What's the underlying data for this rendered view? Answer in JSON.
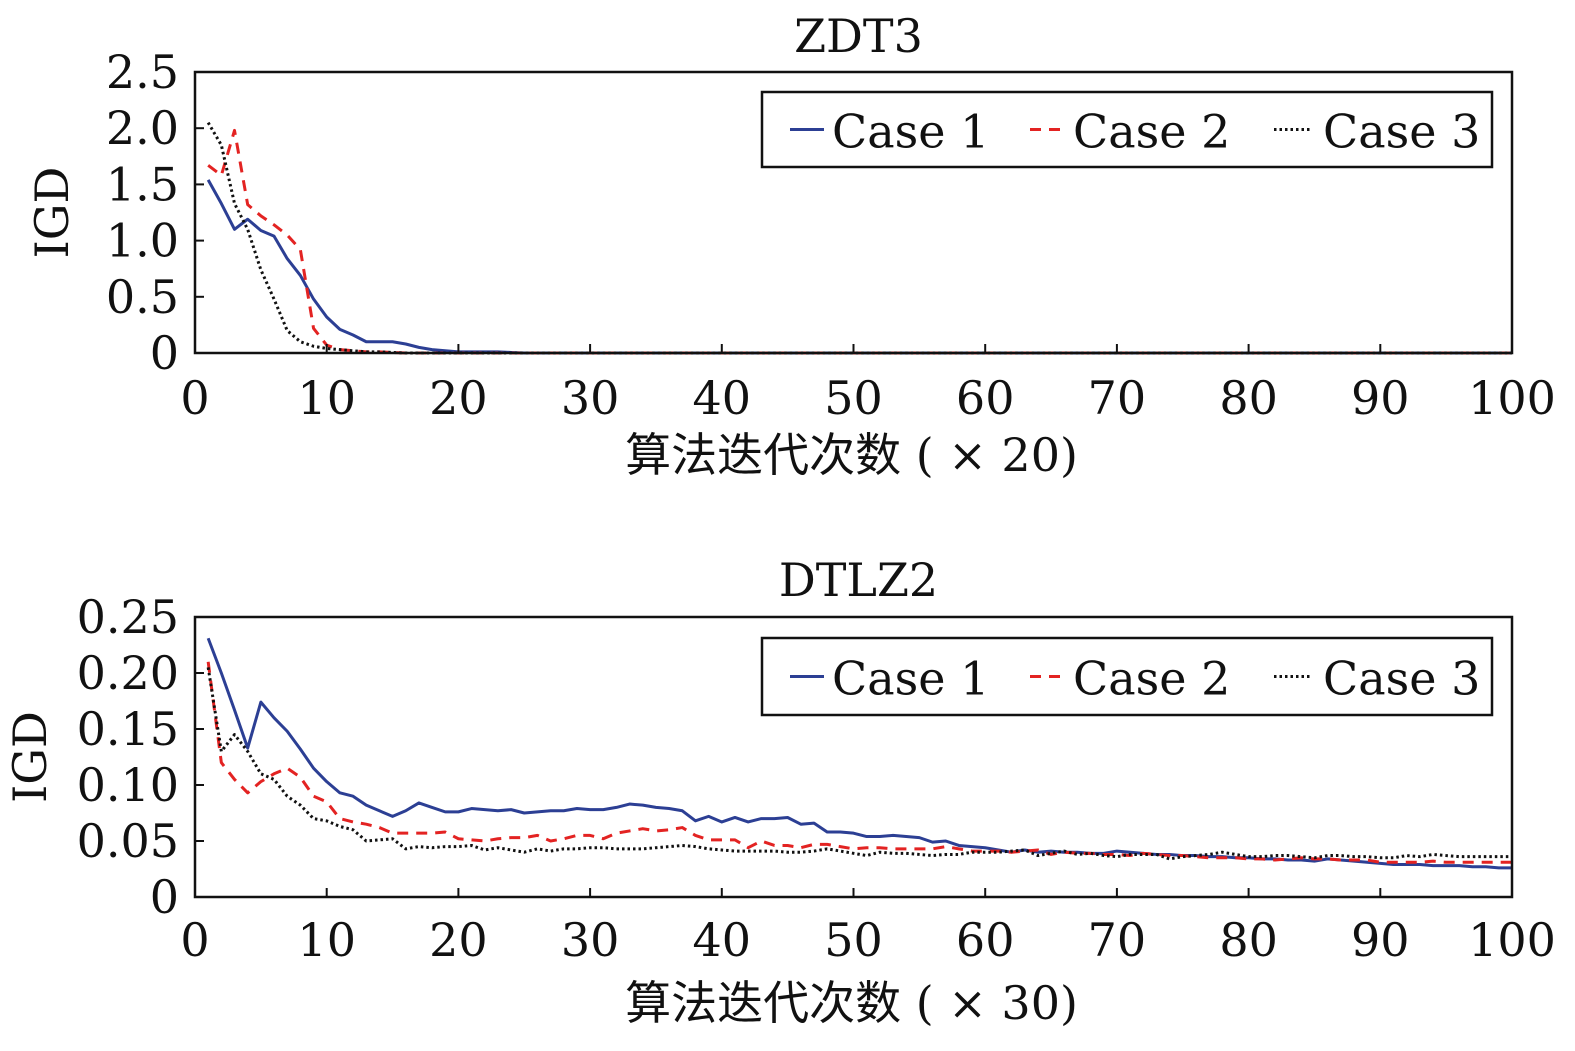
{
  "chart_data": [
    {
      "type": "line",
      "title": "ZDT3",
      "xlabel": "算法迭代次数 ( × 20)",
      "ylabel": "IGD",
      "xlim": [
        0,
        100
      ],
      "ylim": [
        0,
        2.5
      ],
      "xticks": [
        0,
        10,
        20,
        30,
        40,
        50,
        60,
        70,
        80,
        90,
        100
      ],
      "xtick_labels": [
        "0",
        "10",
        "20",
        "30",
        "40",
        "50",
        "60",
        "70",
        "80",
        "90",
        "100"
      ],
      "yticks": [
        0,
        0.5,
        1.0,
        1.5,
        2.0,
        2.5
      ],
      "ytick_labels": [
        "0",
        "0.5",
        "1.0",
        "1.5",
        "2.0",
        "2.5"
      ],
      "grid": false,
      "legend_position": "top-right",
      "x": [
        1,
        2,
        3,
        4,
        5,
        6,
        7,
        8,
        9,
        10,
        11,
        12,
        13,
        14,
        15,
        16,
        17,
        18,
        19,
        20,
        21,
        22,
        23,
        24,
        25,
        26,
        27,
        28,
        29,
        30,
        31,
        32,
        33,
        34,
        35,
        36,
        37,
        38,
        39,
        40,
        41,
        42,
        43,
        44,
        45,
        46,
        47,
        48,
        49,
        50,
        51,
        52,
        53,
        54,
        55,
        56,
        57,
        58,
        59,
        60,
        61,
        62,
        63,
        64,
        65,
        66,
        67,
        68,
        69,
        70,
        71,
        72,
        73,
        74,
        75,
        76,
        77,
        78,
        79,
        80,
        81,
        82,
        83,
        84,
        85,
        86,
        87,
        88,
        89,
        90,
        91,
        92,
        93,
        94,
        95,
        96,
        97,
        98,
        99,
        100
      ],
      "series": [
        {
          "name": "Case 1",
          "color": "#2c3f94",
          "style": "solid",
          "values": [
            1.54,
            1.33,
            1.1,
            1.19,
            1.09,
            1.04,
            0.84,
            0.69,
            0.48,
            0.32,
            0.21,
            0.16,
            0.1,
            0.1,
            0.1,
            0.08,
            0.05,
            0.03,
            0.02,
            0.01,
            0.01,
            0.01,
            0.01,
            0.005,
            0,
            0,
            0,
            0,
            0,
            0,
            0,
            0,
            0,
            0,
            0,
            0,
            0,
            0,
            0,
            0,
            0,
            0,
            0,
            0,
            0,
            0,
            0,
            0,
            0,
            0,
            0,
            0,
            0,
            0,
            0,
            0,
            0,
            0,
            0,
            0,
            0,
            0,
            0,
            0,
            0,
            0,
            0,
            0,
            0,
            0,
            0,
            0,
            0,
            0,
            0,
            0,
            0,
            0,
            0,
            0,
            0,
            0,
            0,
            0,
            0,
            0,
            0,
            0,
            0,
            0,
            0,
            0,
            0,
            0,
            0,
            0,
            0,
            0,
            0,
            0
          ]
        },
        {
          "name": "Case 2",
          "color": "#e32322",
          "style": "dashed",
          "values": [
            1.67,
            1.58,
            1.98,
            1.32,
            1.22,
            1.14,
            1.05,
            0.92,
            0.22,
            0.07,
            0.03,
            0.02,
            0.01,
            0.01,
            0.005,
            0,
            0,
            0,
            0,
            0,
            0,
            0,
            0,
            0,
            0,
            0,
            0,
            0,
            0,
            0,
            0,
            0,
            0,
            0,
            0,
            0,
            0,
            0,
            0,
            0,
            0,
            0,
            0,
            0,
            0,
            0,
            0,
            0,
            0,
            0,
            0,
            0,
            0,
            0,
            0,
            0,
            0,
            0,
            0,
            0,
            0,
            0,
            0,
            0,
            0,
            0,
            0,
            0,
            0,
            0,
            0,
            0,
            0,
            0,
            0,
            0,
            0,
            0,
            0,
            0,
            0,
            0,
            0,
            0,
            0,
            0,
            0,
            0,
            0,
            0,
            0,
            0,
            0,
            0,
            0,
            0,
            0,
            0,
            0,
            0
          ]
        },
        {
          "name": "Case 3",
          "color": "#111111",
          "style": "dotted",
          "values": [
            2.05,
            1.85,
            1.33,
            1.1,
            0.74,
            0.48,
            0.2,
            0.1,
            0.06,
            0.04,
            0.03,
            0.02,
            0.01,
            0.01,
            0.005,
            0,
            0,
            0,
            0,
            0,
            0,
            0,
            0,
            0,
            0,
            0,
            0,
            0,
            0,
            0,
            0,
            0,
            0,
            0,
            0,
            0,
            0,
            0,
            0,
            0,
            0,
            0,
            0,
            0,
            0,
            0,
            0,
            0,
            0,
            0,
            0,
            0,
            0,
            0,
            0,
            0,
            0,
            0,
            0,
            0,
            0,
            0,
            0,
            0,
            0,
            0,
            0,
            0,
            0,
            0,
            0,
            0,
            0,
            0,
            0,
            0,
            0,
            0,
            0,
            0,
            0,
            0,
            0,
            0,
            0,
            0,
            0,
            0,
            0,
            0,
            0,
            0,
            0,
            0,
            0,
            0,
            0,
            0,
            0,
            0
          ]
        }
      ]
    },
    {
      "type": "line",
      "title": "DTLZ2",
      "xlabel": "算法迭代次数 ( × 30)",
      "ylabel": "IGD",
      "xlim": [
        0,
        100
      ],
      "ylim": [
        0,
        0.25
      ],
      "xticks": [
        0,
        10,
        20,
        30,
        40,
        50,
        60,
        70,
        80,
        90,
        100
      ],
      "xtick_labels": [
        "0",
        "10",
        "20",
        "30",
        "40",
        "50",
        "60",
        "70",
        "80",
        "90",
        "100"
      ],
      "yticks": [
        0,
        0.05,
        0.1,
        0.15,
        0.2,
        0.25
      ],
      "ytick_labels": [
        "0",
        "0.05",
        "0.10",
        "0.15",
        "0.20",
        "0.25"
      ],
      "grid": false,
      "legend_position": "top-right",
      "x": [
        1,
        2,
        3,
        4,
        5,
        6,
        7,
        8,
        9,
        10,
        11,
        12,
        13,
        14,
        15,
        16,
        17,
        18,
        19,
        20,
        21,
        22,
        23,
        24,
        25,
        26,
        27,
        28,
        29,
        30,
        31,
        32,
        33,
        34,
        35,
        36,
        37,
        38,
        39,
        40,
        41,
        42,
        43,
        44,
        45,
        46,
        47,
        48,
        49,
        50,
        51,
        52,
        53,
        54,
        55,
        56,
        57,
        58,
        59,
        60,
        61,
        62,
        63,
        64,
        65,
        66,
        67,
        68,
        69,
        70,
        71,
        72,
        73,
        74,
        75,
        76,
        77,
        78,
        79,
        80,
        81,
        82,
        83,
        84,
        85,
        86,
        87,
        88,
        89,
        90,
        91,
        92,
        93,
        94,
        95,
        96,
        97,
        98,
        99,
        100
      ],
      "series": [
        {
          "name": "Case 1",
          "color": "#2c3f94",
          "style": "solid",
          "values": [
            0.231,
            0.2,
            0.167,
            0.133,
            0.174,
            0.16,
            0.148,
            0.132,
            0.115,
            0.103,
            0.093,
            0.09,
            0.082,
            0.077,
            0.072,
            0.077,
            0.084,
            0.08,
            0.076,
            0.076,
            0.079,
            0.078,
            0.077,
            0.078,
            0.075,
            0.076,
            0.077,
            0.077,
            0.079,
            0.078,
            0.078,
            0.08,
            0.083,
            0.082,
            0.08,
            0.079,
            0.077,
            0.068,
            0.072,
            0.067,
            0.071,
            0.067,
            0.07,
            0.07,
            0.071,
            0.065,
            0.066,
            0.058,
            0.058,
            0.057,
            0.054,
            0.054,
            0.055,
            0.054,
            0.053,
            0.049,
            0.05,
            0.046,
            0.045,
            0.044,
            0.042,
            0.04,
            0.042,
            0.04,
            0.041,
            0.04,
            0.04,
            0.039,
            0.039,
            0.041,
            0.04,
            0.039,
            0.038,
            0.038,
            0.037,
            0.037,
            0.036,
            0.036,
            0.035,
            0.035,
            0.034,
            0.034,
            0.033,
            0.033,
            0.032,
            0.034,
            0.033,
            0.032,
            0.031,
            0.03,
            0.029,
            0.029,
            0.029,
            0.028,
            0.028,
            0.028,
            0.027,
            0.027,
            0.026,
            0.026
          ]
        },
        {
          "name": "Case 2",
          "color": "#e32322",
          "style": "dashed",
          "values": [
            0.21,
            0.12,
            0.105,
            0.093,
            0.103,
            0.11,
            0.115,
            0.107,
            0.09,
            0.085,
            0.07,
            0.067,
            0.065,
            0.062,
            0.057,
            0.057,
            0.057,
            0.057,
            0.058,
            0.052,
            0.051,
            0.05,
            0.052,
            0.053,
            0.053,
            0.055,
            0.05,
            0.052,
            0.055,
            0.055,
            0.052,
            0.057,
            0.059,
            0.061,
            0.059,
            0.06,
            0.062,
            0.055,
            0.051,
            0.051,
            0.051,
            0.044,
            0.05,
            0.046,
            0.046,
            0.044,
            0.047,
            0.047,
            0.045,
            0.043,
            0.044,
            0.044,
            0.043,
            0.043,
            0.043,
            0.043,
            0.045,
            0.043,
            0.041,
            0.041,
            0.041,
            0.04,
            0.041,
            0.042,
            0.038,
            0.04,
            0.039,
            0.039,
            0.038,
            0.038,
            0.037,
            0.039,
            0.038,
            0.037,
            0.037,
            0.036,
            0.035,
            0.035,
            0.035,
            0.034,
            0.034,
            0.033,
            0.034,
            0.035,
            0.034,
            0.034,
            0.033,
            0.033,
            0.033,
            0.031,
            0.031,
            0.031,
            0.031,
            0.032,
            0.031,
            0.031,
            0.031,
            0.031,
            0.031,
            0.031
          ]
        },
        {
          "name": "Case 3",
          "color": "#111111",
          "style": "dotted",
          "values": [
            0.205,
            0.13,
            0.145,
            0.13,
            0.11,
            0.105,
            0.09,
            0.082,
            0.07,
            0.068,
            0.063,
            0.06,
            0.05,
            0.051,
            0.052,
            0.043,
            0.045,
            0.044,
            0.045,
            0.045,
            0.046,
            0.042,
            0.044,
            0.042,
            0.04,
            0.043,
            0.041,
            0.043,
            0.043,
            0.044,
            0.044,
            0.043,
            0.043,
            0.043,
            0.044,
            0.045,
            0.046,
            0.045,
            0.043,
            0.042,
            0.041,
            0.041,
            0.041,
            0.041,
            0.04,
            0.04,
            0.041,
            0.043,
            0.041,
            0.039,
            0.037,
            0.04,
            0.039,
            0.039,
            0.038,
            0.037,
            0.038,
            0.038,
            0.04,
            0.04,
            0.04,
            0.041,
            0.042,
            0.037,
            0.039,
            0.041,
            0.038,
            0.039,
            0.037,
            0.036,
            0.038,
            0.038,
            0.038,
            0.034,
            0.036,
            0.037,
            0.038,
            0.04,
            0.038,
            0.036,
            0.036,
            0.037,
            0.037,
            0.036,
            0.035,
            0.037,
            0.037,
            0.036,
            0.036,
            0.035,
            0.035,
            0.037,
            0.036,
            0.038,
            0.037,
            0.036,
            0.036,
            0.036,
            0.036,
            0.036
          ]
        }
      ]
    }
  ]
}
